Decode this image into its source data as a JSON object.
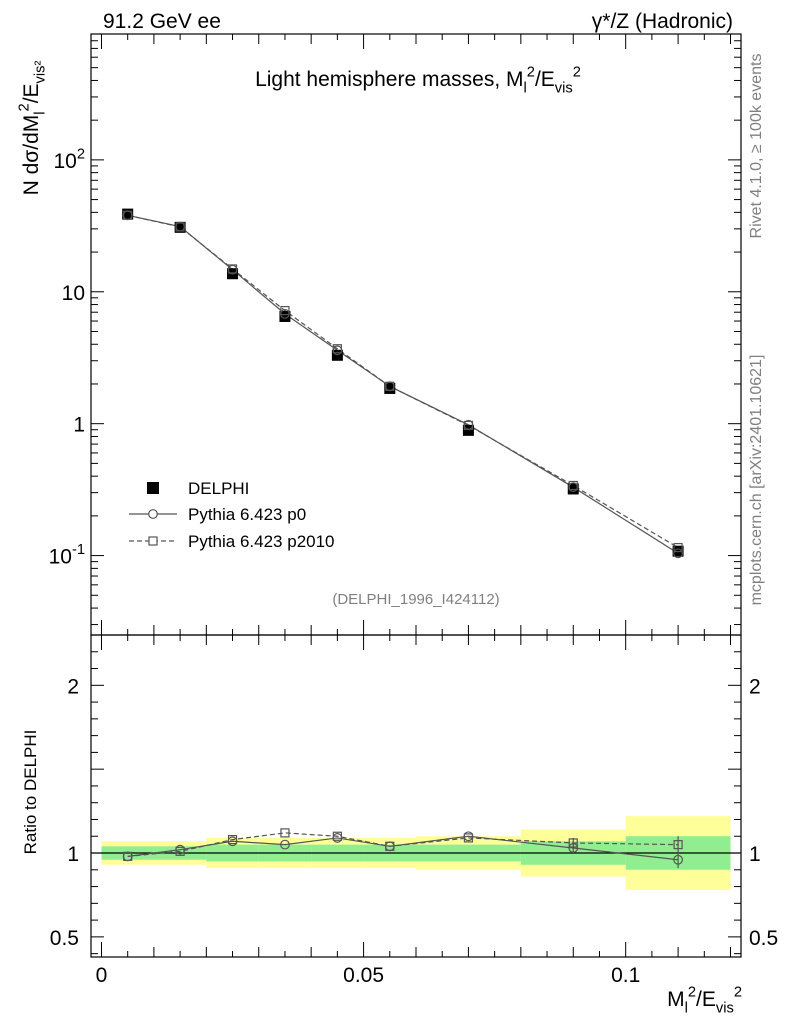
{
  "header": {
    "left": "91.2 GeV ee",
    "right": "γ*/Z (Hadronic)"
  },
  "side_text": {
    "rivet": "Rivet 4.1.0, ≥ 100k events",
    "mcplots": "mcplots.cern.ch [arXiv:2401.10621]"
  },
  "chart_data": [
    {
      "type": "line",
      "title": "Light hemisphere masses, M_l^2/E_vis^2",
      "ylabel": "N  dσ/dM_l^2/E_vis²",
      "yscale": "log",
      "ylim": [
        0.025,
        900
      ],
      "xlim": [
        -0.002,
        0.122
      ],
      "yticks": [
        {
          "value": 0.1,
          "label": "10^-1"
        },
        {
          "value": 1,
          "label": "1"
        },
        {
          "value": 10,
          "label": "10"
        },
        {
          "value": 100,
          "label": "10^2"
        }
      ],
      "watermark": "(DELPHI_1996_I424112)",
      "legend_position": "bottom-left",
      "x": [
        0.005,
        0.015,
        0.025,
        0.035,
        0.045,
        0.055,
        0.07,
        0.09,
        0.11
      ],
      "series": [
        {
          "name": "DELPHI",
          "marker": "filled-square",
          "color": "#000000",
          "values": [
            38.8,
            30.8,
            13.7,
            6.5,
            3.3,
            1.85,
            0.89,
            0.32,
            0.108
          ]
        },
        {
          "name": "Pythia 6.423 p0",
          "marker": "open-circle",
          "line": "solid",
          "color": "#555555",
          "values": [
            38.0,
            31.2,
            14.7,
            6.8,
            3.6,
            1.92,
            0.98,
            0.33,
            0.104
          ]
        },
        {
          "name": "Pythia 6.423 p2010",
          "marker": "open-square",
          "line": "dashed",
          "color": "#555555",
          "values": [
            38.0,
            31.0,
            14.9,
            7.2,
            3.7,
            1.92,
            0.97,
            0.34,
            0.115
          ]
        }
      ]
    },
    {
      "type": "line",
      "ylabel": "Ratio to DELPHI",
      "xlabel": "M_l^2/E_vis^2",
      "ylim": [
        0.38,
        2.3
      ],
      "xlim": [
        -0.002,
        0.122
      ],
      "xticks": [
        {
          "value": 0,
          "label": "0"
        },
        {
          "value": 0.05,
          "label": "0.05"
        },
        {
          "value": 0.1,
          "label": "0.1"
        }
      ],
      "yticks": [
        {
          "value": 0.5,
          "label": "0.5"
        },
        {
          "value": 1,
          "label": "1"
        },
        {
          "value": 2,
          "label": "2"
        }
      ],
      "bands": {
        "bins": [
          [
            0.0,
            0.01
          ],
          [
            0.01,
            0.02
          ],
          [
            0.02,
            0.03
          ],
          [
            0.03,
            0.04
          ],
          [
            0.04,
            0.05
          ],
          [
            0.05,
            0.06
          ],
          [
            0.06,
            0.08
          ],
          [
            0.08,
            0.1
          ],
          [
            0.1,
            0.12
          ]
        ],
        "inner": [
          0.04,
          0.04,
          0.05,
          0.05,
          0.05,
          0.05,
          0.05,
          0.07,
          0.1
        ],
        "outer": [
          0.07,
          0.07,
          0.09,
          0.09,
          0.09,
          0.09,
          0.1,
          0.14,
          0.22
        ],
        "inner_color": "#90ee90",
        "outer_color": "#ffff99"
      },
      "x": [
        0.005,
        0.015,
        0.025,
        0.035,
        0.045,
        0.055,
        0.07,
        0.09,
        0.11
      ],
      "series": [
        {
          "name": "Pythia 6.423 p0",
          "values": [
            0.98,
            1.02,
            1.07,
            1.05,
            1.09,
            1.04,
            1.1,
            1.03,
            0.96
          ],
          "errors": [
            0,
            0,
            0,
            0,
            0,
            0,
            0,
            0.03,
            0.05
          ]
        },
        {
          "name": "Pythia 6.423 p2010",
          "values": [
            0.98,
            1.01,
            1.08,
            1.12,
            1.1,
            1.04,
            1.09,
            1.06,
            1.05
          ],
          "errors": [
            0,
            0,
            0,
            0,
            0,
            0,
            0,
            0.03,
            0.05
          ]
        }
      ]
    }
  ]
}
